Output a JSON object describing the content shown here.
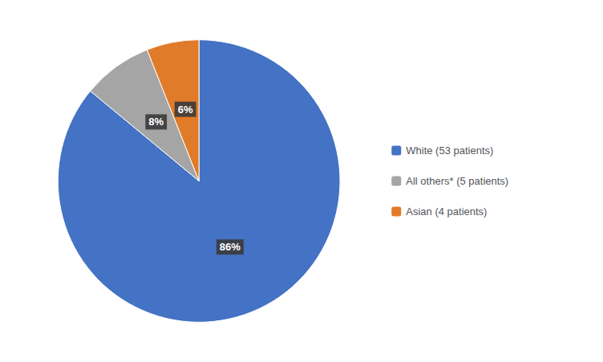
{
  "chart_data": {
    "type": "pie",
    "categories": [
      "White (53 patients)",
      "All others* (5 patients)",
      "Asian (4 patients)"
    ],
    "values": [
      86,
      8,
      6
    ],
    "value_labels": [
      "86%",
      "8%",
      "6%"
    ],
    "colors": [
      "#4472C4",
      "#A5A5A5",
      "#E07B2A"
    ],
    "data_labels": true,
    "legend": "right"
  }
}
